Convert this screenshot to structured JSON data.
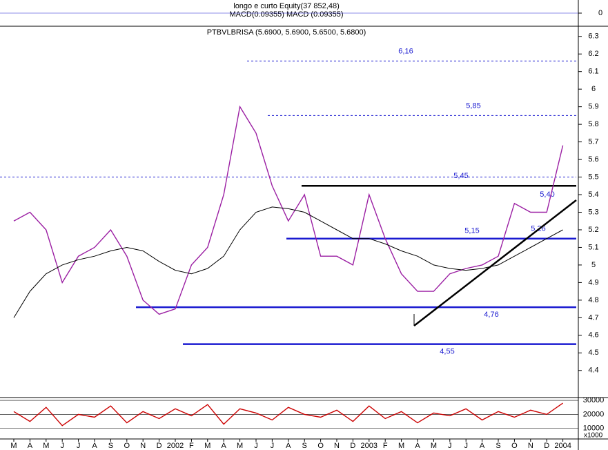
{
  "chart_data": [
    {
      "type": "indicator",
      "title": "longo e curto Equity(37 852,48)",
      "subtitle": "MACD(0.09355) MACD (0.09355)",
      "ylim": [
        -1,
        1
      ],
      "yticks": [
        0
      ]
    },
    {
      "type": "line",
      "title": "PTBVLBRISA (5.6900, 5.6900, 5.6500, 5.6800)",
      "categories": [
        "M",
        "A",
        "M",
        "J",
        "J",
        "A",
        "S",
        "O",
        "N",
        "D",
        "2002",
        "F",
        "M",
        "A",
        "M",
        "J",
        "J",
        "A",
        "S",
        "O",
        "N",
        "D",
        "2003",
        "F",
        "M",
        "A",
        "M",
        "J",
        "J",
        "A",
        "S",
        "O",
        "N",
        "D",
        "2004"
      ],
      "series": [
        {
          "color": "#9b1fa3",
          "values": [
            5.25,
            5.3,
            5.2,
            4.9,
            5.05,
            5.1,
            5.2,
            5.05,
            4.8,
            4.72,
            4.75,
            5.0,
            5.1,
            5.4,
            5.9,
            5.75,
            5.45,
            5.25,
            5.4,
            5.05,
            5.05,
            5.0,
            5.4,
            5.15,
            4.95,
            4.85,
            4.85,
            4.95,
            4.98,
            5.0,
            5.05,
            5.35,
            5.3,
            5.3,
            5.68
          ]
        },
        {
          "color": "#000000",
          "values": [
            4.7,
            4.85,
            4.95,
            5.0,
            5.03,
            5.05,
            5.08,
            5.1,
            5.08,
            5.02,
            4.97,
            4.95,
            4.98,
            5.05,
            5.2,
            5.3,
            5.33,
            5.32,
            5.3,
            5.25,
            5.2,
            5.15,
            5.15,
            5.12,
            5.08,
            5.05,
            5.0,
            4.98,
            4.97,
            4.98,
            5.0,
            5.05,
            5.1,
            5.15,
            5.2
          ]
        }
      ],
      "ylim": [
        4.25,
        6.35
      ],
      "yticks": [
        4.4,
        4.5,
        4.6,
        4.7,
        4.8,
        4.9,
        5.0,
        5.1,
        5.2,
        5.3,
        5.4,
        5.5,
        5.6,
        5.7,
        5.8,
        5.9,
        6.0,
        6.1,
        6.2,
        6.3
      ],
      "levels": [
        {
          "value": 6.16,
          "label": "6,16"
        },
        {
          "value": 5.85,
          "label": "5,85"
        },
        {
          "value": 5.45,
          "label": "5,45"
        },
        {
          "value": 5.4,
          "label": "5,40"
        },
        {
          "value": 5.26,
          "label": "5,26"
        },
        {
          "value": 5.15,
          "label": "5,15"
        },
        {
          "value": 4.76,
          "label": "4,76"
        },
        {
          "value": 4.55,
          "label": "4,55"
        }
      ]
    },
    {
      "type": "line",
      "series": [
        {
          "color": "#cc0000",
          "values": [
            22000,
            15000,
            25000,
            12000,
            20000,
            18000,
            26000,
            14000,
            22000,
            17000,
            24000,
            19000,
            27000,
            13000,
            24000,
            21000,
            16000,
            25000,
            20000,
            18000,
            23000,
            15000,
            26000,
            17000,
            22000,
            14000,
            21000,
            19000,
            24000,
            16000,
            22000,
            18000,
            23000,
            20000,
            28000
          ]
        }
      ],
      "ylim": [
        2500,
        32000
      ],
      "yticks": [
        10000,
        20000,
        30000
      ],
      "unit": "x1000"
    }
  ]
}
